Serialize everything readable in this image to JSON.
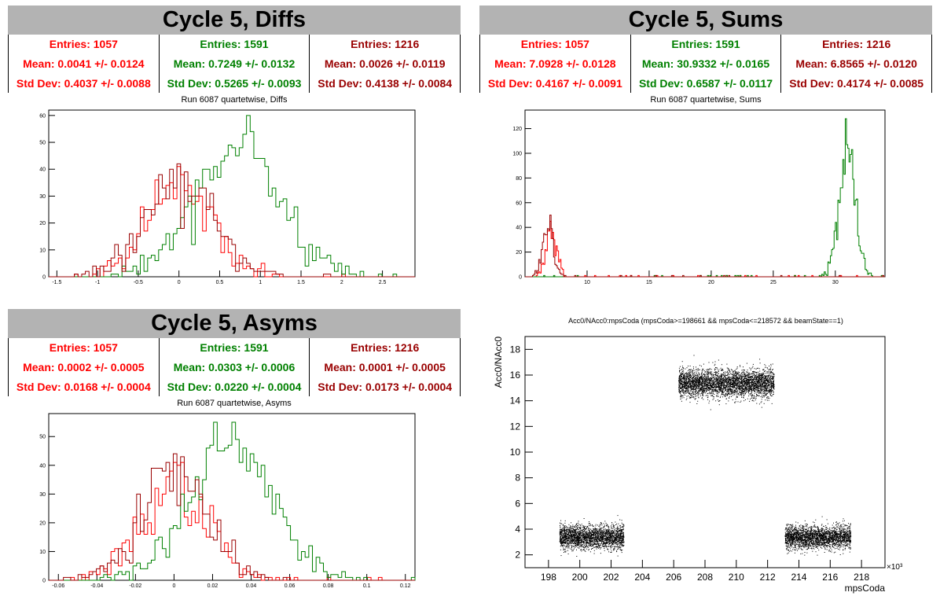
{
  "colors": {
    "red": "#ff0000",
    "green": "#008000",
    "darkred": "#990000",
    "banner": "#b3b3b3"
  },
  "panels": [
    {
      "id": "diffs",
      "banner": "Cycle 5, Diffs",
      "subtitle": "Run 6087 quartetwise, Diffs",
      "stats": [
        {
          "entries": "Entries: 1057",
          "mean": "Mean: 0.0041 +/- 0.0124",
          "std": "Std Dev: 0.4037 +/- 0.0088"
        },
        {
          "entries": "Entries: 1591",
          "mean": "Mean: 0.7249 +/- 0.0132",
          "std": "Std Dev: 0.5265 +/- 0.0093"
        },
        {
          "entries": "Entries: 1216",
          "mean": "Mean: 0.0026 +/- 0.0119",
          "std": "Std Dev: 0.4138 +/- 0.0084"
        }
      ]
    },
    {
      "id": "sums",
      "banner": "Cycle 5, Sums",
      "subtitle": "Run 6087 quartetwise, Sums",
      "stats": [
        {
          "entries": "Entries: 1057",
          "mean": "Mean: 7.0928 +/- 0.0128",
          "std": "Std Dev: 0.4167 +/- 0.0091"
        },
        {
          "entries": "Entries: 1591",
          "mean": "Mean: 30.9332 +/- 0.0165",
          "std": "Std Dev: 0.6587 +/- 0.0117"
        },
        {
          "entries": "Entries: 1216",
          "mean": "Mean: 6.8565 +/- 0.0120",
          "std": "Std Dev: 0.4174 +/- 0.0085"
        }
      ]
    },
    {
      "id": "asyms",
      "banner": "Cycle 5, Asyms",
      "subtitle": "Run 6087 quartetwise, Asyms",
      "stats": [
        {
          "entries": "Entries: 1057",
          "mean": "Mean: 0.0002 +/- 0.0005",
          "std": "Std Dev: 0.0168 +/- 0.0004"
        },
        {
          "entries": "Entries: 1591",
          "mean": "Mean: 0.0303 +/- 0.0006",
          "std": "Std Dev: 0.0220 +/- 0.0004"
        },
        {
          "entries": "Entries: 1216",
          "mean": "Mean: 0.0001 +/- 0.0005",
          "std": "Std Dev: 0.0173 +/- 0.0004"
        }
      ]
    }
  ],
  "scatter_title": "Acc0/NAcc0:mpsCoda (mpsCoda>=198661 && mpsCoda<=218572 && beamState==1)",
  "chart_data": [
    {
      "type": "bar",
      "histogram": true,
      "xlim": [
        -1.6,
        2.9
      ],
      "ylim": [
        0,
        62
      ],
      "xticks": [
        -1.5,
        -1,
        -0.5,
        0,
        0.5,
        1,
        1.5,
        2,
        2.5
      ],
      "xtick_labels": [
        "-1.5",
        "-1",
        "-0.5",
        "0",
        "0.5",
        "1",
        "1.5",
        "2",
        "2.5"
      ],
      "yticks": [
        0,
        10,
        20,
        30,
        40,
        50,
        60
      ],
      "ytick_labels": [
        "0",
        "10",
        "20",
        "30",
        "40",
        "50",
        "60"
      ],
      "series": [
        {
          "color": "red",
          "mean": 0.0041,
          "std": 0.4037,
          "peak": 41
        },
        {
          "color": "green",
          "mean": 0.7249,
          "std": 0.5265,
          "peak": 60
        },
        {
          "color": "darkred",
          "mean": 0.0026,
          "std": 0.4138,
          "peak": 42
        }
      ]
    },
    {
      "type": "bar",
      "histogram": true,
      "xlim": [
        5,
        34
      ],
      "ylim": [
        0,
        135
      ],
      "xticks": [
        10,
        15,
        20,
        25,
        30
      ],
      "xtick_labels": [
        "10",
        "15",
        "20",
        "25",
        "30"
      ],
      "yticks": [
        0,
        20,
        40,
        60,
        80,
        100,
        120
      ],
      "ytick_labels": [
        "0",
        "20",
        "40",
        "60",
        "80",
        "100",
        "120"
      ],
      "series": [
        {
          "color": "red",
          "mean": 7.0928,
          "std": 0.4167,
          "peak": 45
        },
        {
          "color": "green",
          "mean": 30.9332,
          "std": 0.6587,
          "peak": 128
        },
        {
          "color": "darkred",
          "mean": 6.8565,
          "std": 0.4174,
          "peak": 50
        }
      ]
    },
    {
      "type": "bar",
      "histogram": true,
      "xlim": [
        -0.065,
        0.125
      ],
      "ylim": [
        0,
        58
      ],
      "xticks": [
        -0.06,
        -0.04,
        -0.02,
        0,
        0.02,
        0.04,
        0.06,
        0.08,
        0.1,
        0.12
      ],
      "xtick_labels": [
        "-0.06",
        "-0.04",
        "-0.02",
        "0",
        "0.02",
        "0.04",
        "0.06",
        "0.08",
        "0.1",
        "0.12"
      ],
      "yticks": [
        0,
        10,
        20,
        30,
        40,
        50
      ],
      "ytick_labels": [
        "0",
        "10",
        "20",
        "30",
        "40",
        "50"
      ],
      "series": [
        {
          "color": "red",
          "mean": 0.0002,
          "std": 0.0168,
          "peak": 41
        },
        {
          "color": "green",
          "mean": 0.0303,
          "std": 0.022,
          "peak": 55
        },
        {
          "color": "darkred",
          "mean": 0.0001,
          "std": 0.0173,
          "peak": 44
        }
      ]
    },
    {
      "type": "scatter",
      "xlabel": "mpsCoda",
      "ylabel": "Acc0/NAcc0",
      "x_multiplier": "×10³",
      "xlim": [
        196.5,
        219.5
      ],
      "ylim": [
        1,
        19
      ],
      "xticks": [
        198,
        200,
        202,
        204,
        206,
        208,
        210,
        212,
        214,
        216,
        218
      ],
      "xtick_labels": [
        "198",
        "200",
        "202",
        "204",
        "206",
        "208",
        "210",
        "212",
        "214",
        "216",
        "218"
      ],
      "yticks": [
        2,
        4,
        6,
        8,
        10,
        12,
        14,
        16,
        18
      ],
      "ytick_labels": [
        "2",
        "4",
        "6",
        "8",
        "10",
        "12",
        "14",
        "16",
        "18"
      ],
      "clusters": [
        {
          "x_range": [
            198.7,
            202.8
          ],
          "y_center": 3.4,
          "y_spread": 0.45
        },
        {
          "x_range": [
            206.3,
            212.4
          ],
          "y_center": 15.4,
          "y_spread": 0.55
        },
        {
          "x_range": [
            213.1,
            217.3
          ],
          "y_center": 3.4,
          "y_spread": 0.45
        }
      ]
    }
  ]
}
